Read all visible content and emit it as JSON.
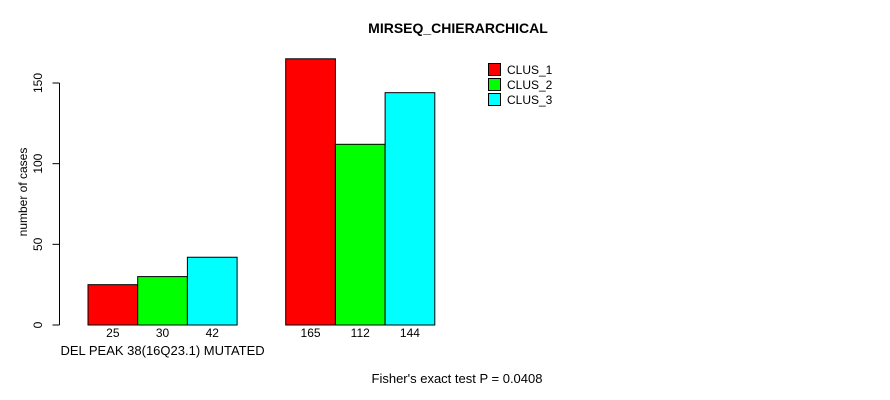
{
  "chart_data": {
    "type": "bar",
    "title": "MIRSEQ_CHIERARCHICAL",
    "ylabel": "number of cases",
    "xlabel": "",
    "ylim": [
      0,
      165
    ],
    "yticks": [
      0,
      50,
      100,
      150
    ],
    "grid": false,
    "legend_position": "top-right",
    "series": [
      {
        "name": "CLUS_1",
        "color": "#FF0000"
      },
      {
        "name": "CLUS_2",
        "color": "#00FF00"
      },
      {
        "name": "CLUS_3",
        "color": "#00FFFF"
      }
    ],
    "groups": [
      {
        "label": "DEL PEAK 38(16Q23.1) MUTATED",
        "values": [
          25,
          30,
          42
        ]
      },
      {
        "label": "",
        "values": [
          165,
          112,
          144
        ]
      }
    ],
    "annotation": "Fisher's exact test P = 0.0408"
  },
  "colors": {
    "background": "#FFFFFF",
    "bar_border": "#000000",
    "text": "#000000"
  }
}
